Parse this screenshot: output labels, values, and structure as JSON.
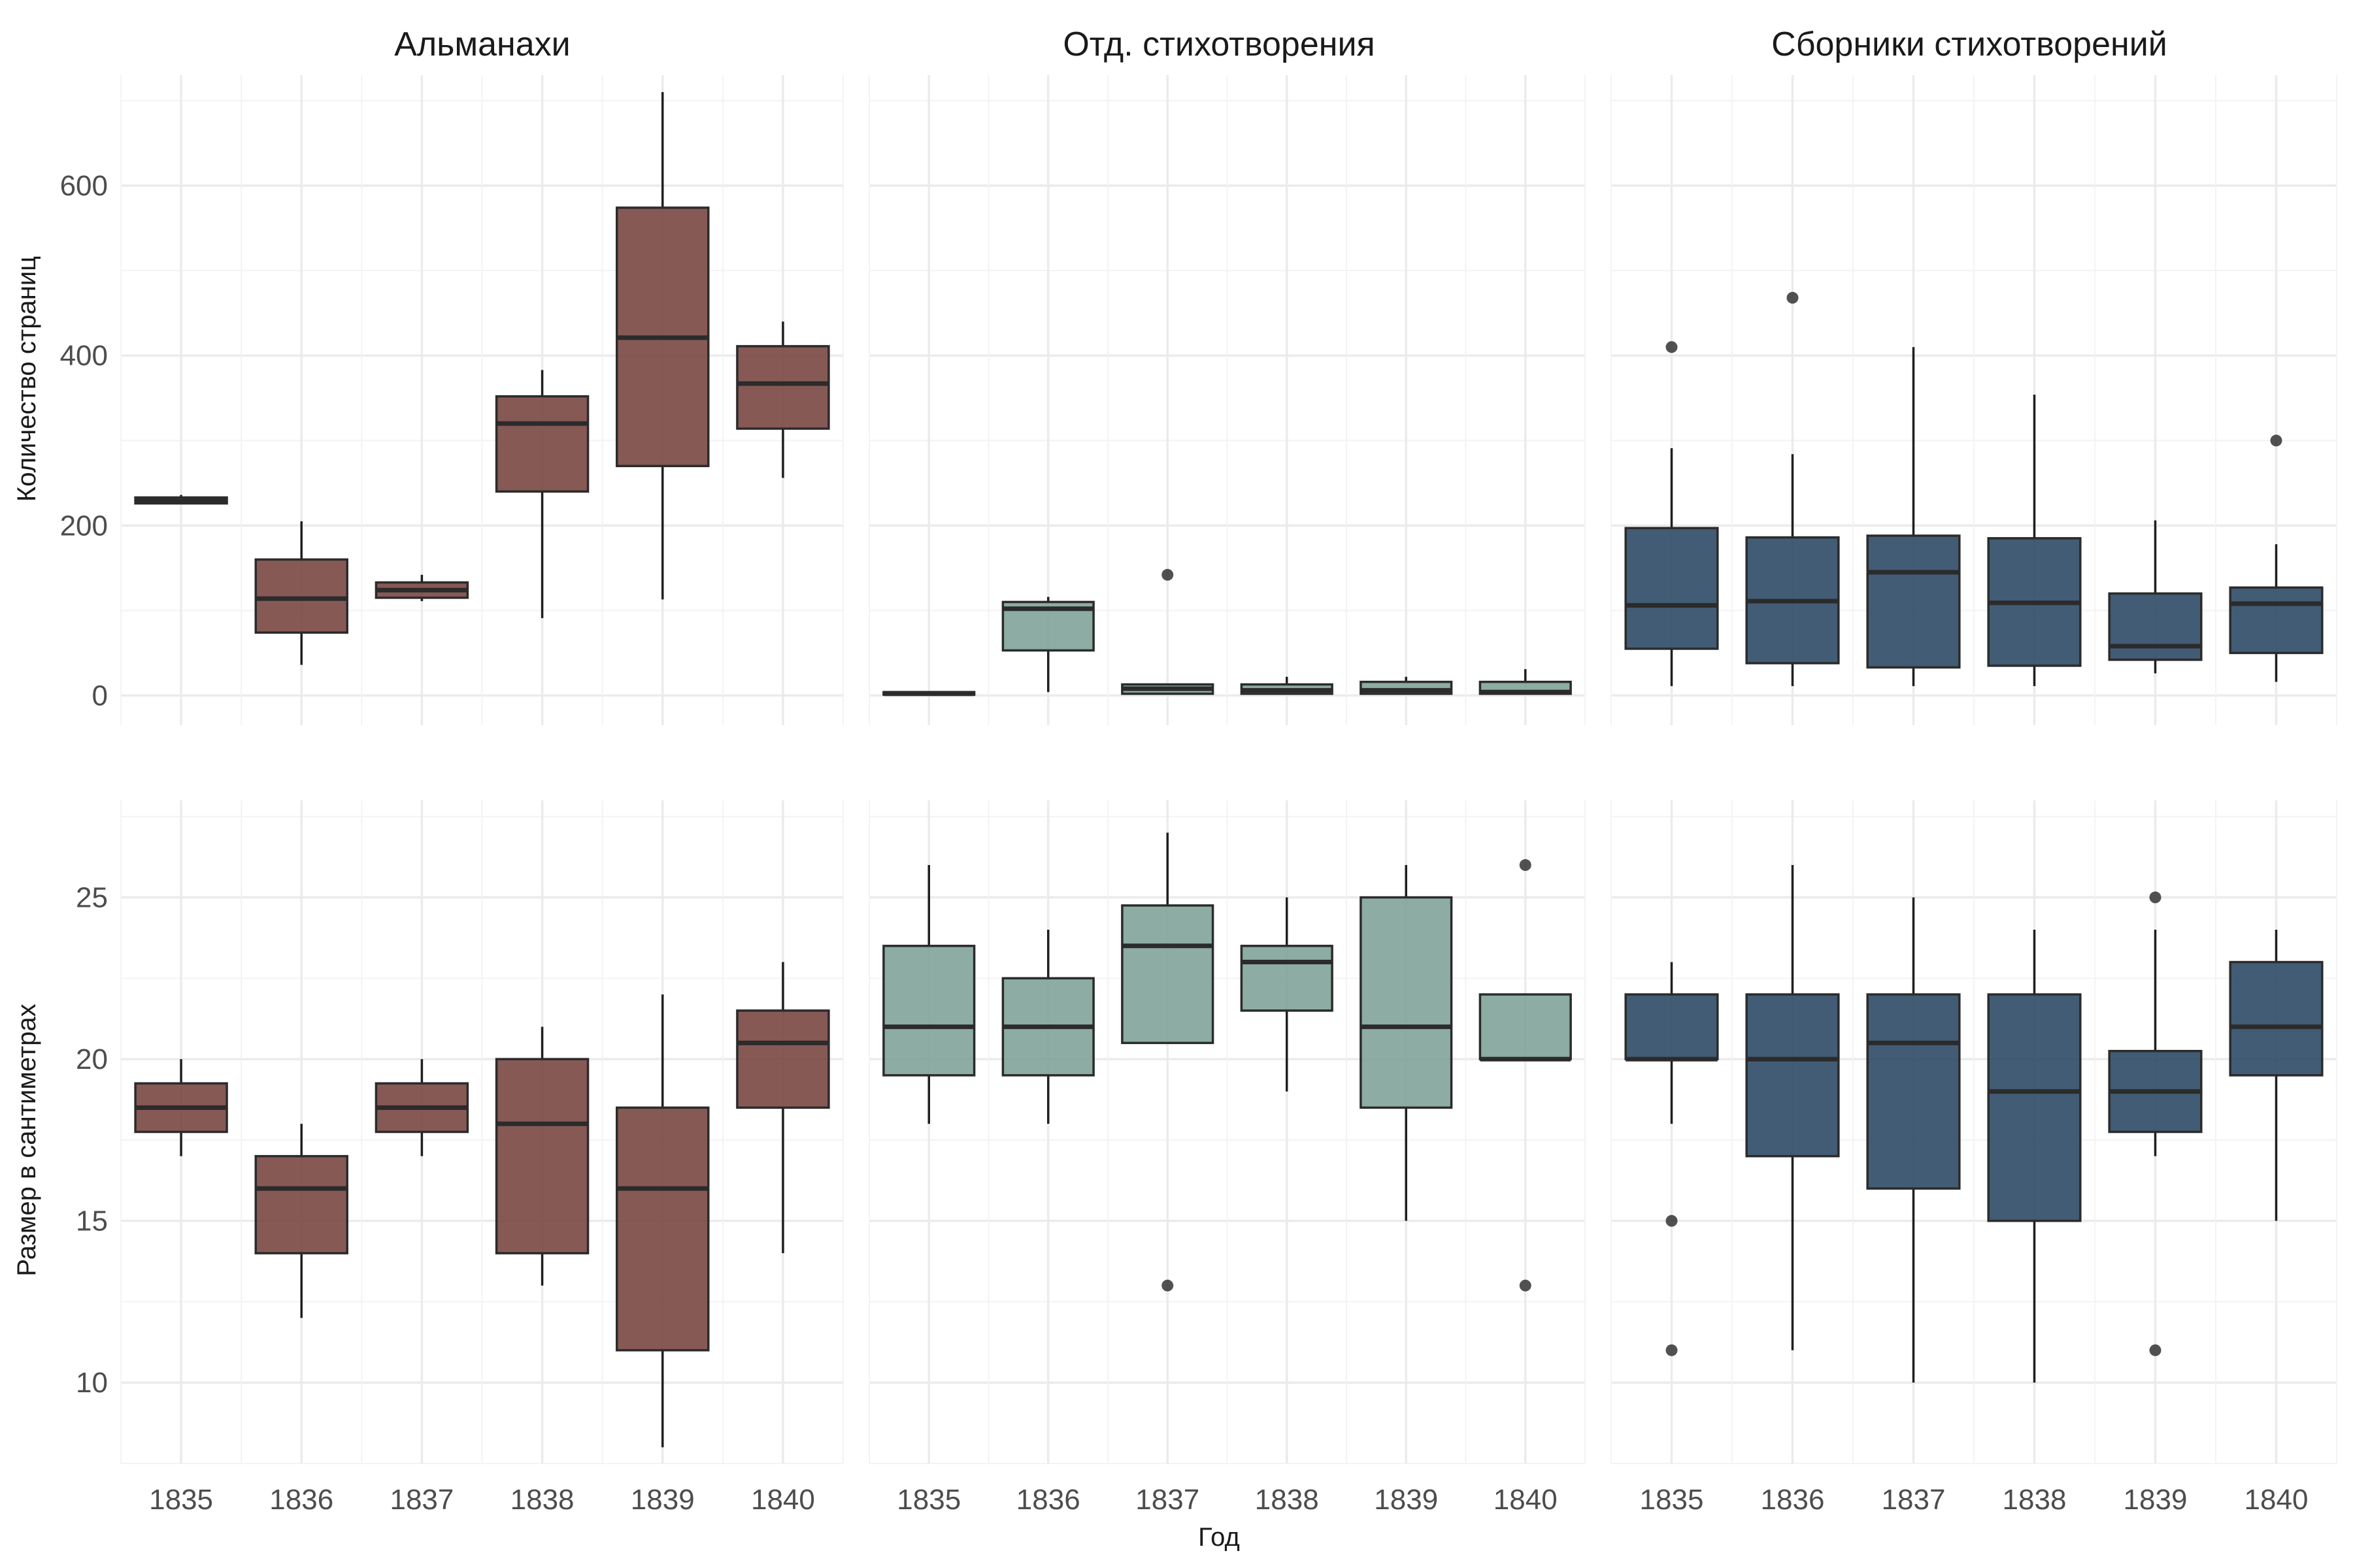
{
  "chart_data": {
    "type": "boxplot",
    "xlabel": "Год",
    "ylabels": [
      "Количество страниц",
      "Размер в сантиметрах"
    ],
    "categories": [
      "1835",
      "1836",
      "1837",
      "1838",
      "1839",
      "1840"
    ],
    "facets": [
      {
        "name": "Альманахи",
        "color": "#7a4743"
      },
      {
        "name": "Отд. стихотворения",
        "color": "#7fa39a"
      },
      {
        "name": "Сборники стихотворений",
        "color": "#2e4a66"
      }
    ],
    "rows": [
      {
        "ylabel": "Количество страниц",
        "ylim": [
          -35,
          730
        ],
        "yticks": [
          0,
          200,
          400,
          600
        ],
        "panels": [
          [
            {
              "year": "1835",
              "lower": 226,
              "q1": 226,
              "median": 229,
              "q3": 233,
              "upper": 236,
              "outliers": []
            },
            {
              "year": "1836",
              "lower": 36,
              "q1": 74,
              "median": 114,
              "q3": 160,
              "upper": 205,
              "outliers": []
            },
            {
              "year": "1837",
              "lower": 111,
              "q1": 115,
              "median": 124,
              "q3": 133,
              "upper": 142,
              "outliers": []
            },
            {
              "year": "1838",
              "lower": 91,
              "q1": 240,
              "median": 320,
              "q3": 352,
              "upper": 383,
              "outliers": []
            },
            {
              "year": "1839",
              "lower": 113,
              "q1": 270,
              "median": 421,
              "q3": 574,
              "upper": 710,
              "outliers": []
            },
            {
              "year": "1840",
              "lower": 256,
              "q1": 314,
              "median": 367,
              "q3": 411,
              "upper": 440,
              "outliers": []
            }
          ],
          [
            {
              "year": "1835",
              "lower": 1,
              "q1": 1,
              "median": 2,
              "q3": 4,
              "upper": 5,
              "outliers": []
            },
            {
              "year": "1836",
              "lower": 4,
              "q1": 53,
              "median": 102,
              "q3": 110,
              "upper": 116,
              "outliers": []
            },
            {
              "year": "1837",
              "lower": 1,
              "q1": 2,
              "median": 8,
              "q3": 13,
              "upper": 14,
              "outliers": [
                142
              ]
            },
            {
              "year": "1838",
              "lower": 1,
              "q1": 2,
              "median": 6,
              "q3": 13,
              "upper": 22,
              "outliers": []
            },
            {
              "year": "1839",
              "lower": 1,
              "q1": 2,
              "median": 6,
              "q3": 16,
              "upper": 22,
              "outliers": []
            },
            {
              "year": "1840",
              "lower": 1,
              "q1": 2,
              "median": 4,
              "q3": 16,
              "upper": 31,
              "outliers": []
            }
          ],
          [
            {
              "year": "1835",
              "lower": 11,
              "q1": 55,
              "median": 106,
              "q3": 197,
              "upper": 291,
              "outliers": [
                410
              ]
            },
            {
              "year": "1836",
              "lower": 11,
              "q1": 38,
              "median": 111,
              "q3": 186,
              "upper": 284,
              "outliers": [
                468
              ]
            },
            {
              "year": "1837",
              "lower": 11,
              "q1": 33,
              "median": 145,
              "q3": 188,
              "upper": 410,
              "outliers": []
            },
            {
              "year": "1838",
              "lower": 11,
              "q1": 35,
              "median": 109,
              "q3": 185,
              "upper": 354,
              "outliers": []
            },
            {
              "year": "1839",
              "lower": 26,
              "q1": 42,
              "median": 58,
              "q3": 120,
              "upper": 206,
              "outliers": []
            },
            {
              "year": "1840",
              "lower": 16,
              "q1": 50,
              "median": 108,
              "q3": 127,
              "upper": 178,
              "outliers": [
                300
              ]
            }
          ]
        ]
      },
      {
        "ylabel": "Размер в сантиметрах",
        "ylim": [
          7.5,
          28.0
        ],
        "yticks": [
          10,
          15,
          20,
          25
        ],
        "panels": [
          [
            {
              "year": "1835",
              "lower": 17,
              "q1": 17.75,
              "median": 18.5,
              "q3": 19.25,
              "upper": 20,
              "outliers": []
            },
            {
              "year": "1836",
              "lower": 12,
              "q1": 14,
              "median": 16,
              "q3": 17,
              "upper": 18,
              "outliers": []
            },
            {
              "year": "1837",
              "lower": 17,
              "q1": 17.75,
              "median": 18.5,
              "q3": 19.25,
              "upper": 20,
              "outliers": []
            },
            {
              "year": "1838",
              "lower": 13,
              "q1": 14,
              "median": 18,
              "q3": 20,
              "upper": 21,
              "outliers": []
            },
            {
              "year": "1839",
              "lower": 8,
              "q1": 11,
              "median": 16,
              "q3": 18.5,
              "upper": 22,
              "outliers": []
            },
            {
              "year": "1840",
              "lower": 14,
              "q1": 18.5,
              "median": 20.5,
              "q3": 21.5,
              "upper": 23,
              "outliers": []
            }
          ],
          [
            {
              "year": "1835",
              "lower": 18,
              "q1": 19.5,
              "median": 21,
              "q3": 23.5,
              "upper": 26,
              "outliers": []
            },
            {
              "year": "1836",
              "lower": 18,
              "q1": 19.5,
              "median": 21,
              "q3": 22.5,
              "upper": 24,
              "outliers": []
            },
            {
              "year": "1837",
              "lower": 20.5,
              "q1": 20.5,
              "median": 23.5,
              "q3": 24.75,
              "upper": 27,
              "outliers": [
                13
              ]
            },
            {
              "year": "1838",
              "lower": 19,
              "q1": 21.5,
              "median": 23,
              "q3": 23.5,
              "upper": 25,
              "outliers": []
            },
            {
              "year": "1839",
              "lower": 15,
              "q1": 18.5,
              "median": 21,
              "q3": 25,
              "upper": 26,
              "outliers": []
            },
            {
              "year": "1840",
              "lower": 20,
              "q1": 20,
              "median": 20,
              "q3": 22,
              "upper": 22,
              "outliers": [
                26,
                13
              ]
            }
          ],
          [
            {
              "year": "1835",
              "lower": 18,
              "q1": 20,
              "median": 20,
              "q3": 22,
              "upper": 23,
              "outliers": [
                15,
                11
              ]
            },
            {
              "year": "1836",
              "lower": 11,
              "q1": 17,
              "median": 20,
              "q3": 22,
              "upper": 26,
              "outliers": []
            },
            {
              "year": "1837",
              "lower": 10,
              "q1": 16,
              "median": 20.5,
              "q3": 22,
              "upper": 25,
              "outliers": []
            },
            {
              "year": "1838",
              "lower": 10,
              "q1": 15,
              "median": 19,
              "q3": 22,
              "upper": 24,
              "outliers": []
            },
            {
              "year": "1839",
              "lower": 17,
              "q1": 17.75,
              "median": 19,
              "q3": 20.25,
              "upper": 24,
              "outliers": [
                25,
                11
              ]
            },
            {
              "year": "1840",
              "lower": 15,
              "q1": 19.5,
              "median": 21,
              "q3": 23,
              "upper": 24,
              "outliers": []
            }
          ]
        ]
      }
    ]
  }
}
